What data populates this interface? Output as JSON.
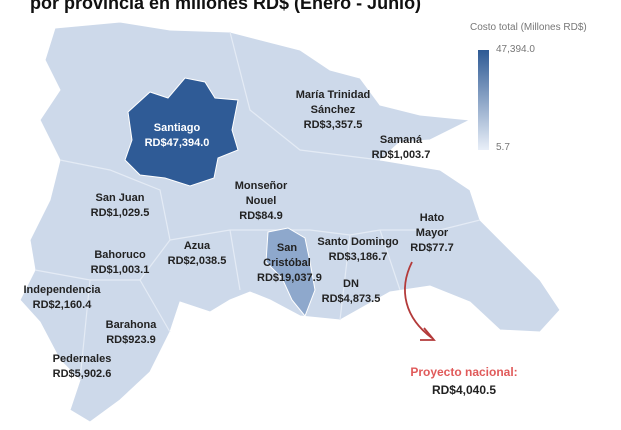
{
  "header": {
    "title": "por provincia en millones RD$ (Enero - Junio)"
  },
  "legend": {
    "title": "Costo total (Millones RD$)",
    "max_label": "47,394.0",
    "min_label": "5.7"
  },
  "provinces": [
    {
      "name": "Santiago",
      "value": "RD$47,394.0"
    },
    {
      "name": "María Trinidad Sánchez",
      "value": "RD$3,357.5"
    },
    {
      "name": "Samaná",
      "value": "RD$1,003.7"
    },
    {
      "name": "San Juan",
      "value": "RD$1,029.5"
    },
    {
      "name": "Monseñor Nouel",
      "value": "RD$84.9"
    },
    {
      "name": "Hato Mayor",
      "value": "RD$77.7"
    },
    {
      "name": "Bahoruco",
      "value": "RD$1,003.1"
    },
    {
      "name": "Azua",
      "value": "RD$2,038.5"
    },
    {
      "name": "San Cristóbal",
      "value": "RD$19,037.9"
    },
    {
      "name": "Santo Domingo",
      "value": "RD$3,186.7"
    },
    {
      "name": "DN",
      "value": "RD$4,873.5"
    },
    {
      "name": "Independencia",
      "value": "RD$2,160.4"
    },
    {
      "name": "Barahona",
      "value": "RD$923.9"
    },
    {
      "name": "Pedernales",
      "value": "RD$5,902.6"
    }
  ],
  "national": {
    "label": "Proyecto nacional:",
    "value": "RD$4,040.5"
  }
}
